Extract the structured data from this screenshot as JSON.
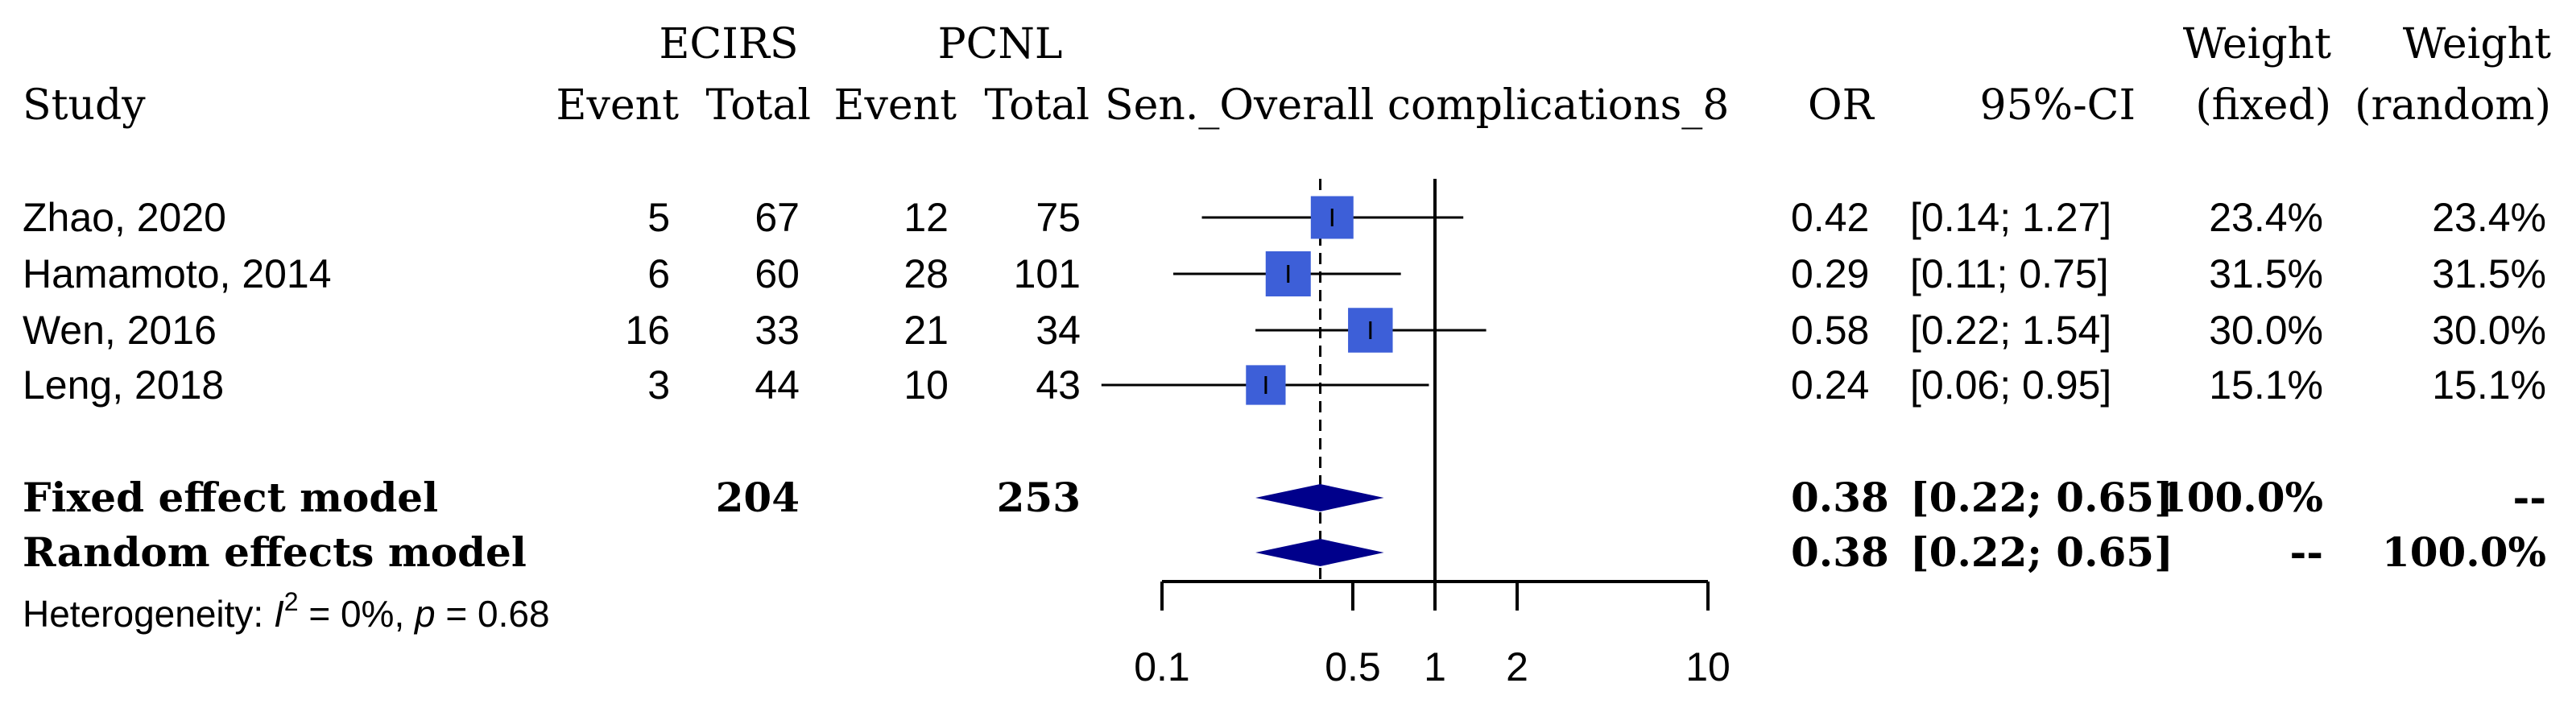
{
  "headers": {
    "group1": "ECIRS",
    "group2": "PCNL",
    "study": "Study",
    "event1": "Event",
    "total1": "Total",
    "event2": "Event",
    "total2": "Total",
    "plot_title": "Sen._Overall complications_8",
    "or": "OR",
    "ci": "95%-CI",
    "weight_fixed_1": "Weight",
    "weight_fixed_2": "(fixed)",
    "weight_random_1": "Weight",
    "weight_random_2": "(random)"
  },
  "studies": [
    {
      "name": "Zhao, 2020",
      "event1": "5",
      "total1": "67",
      "event2": "12",
      "total2": "75",
      "or_text": "0.42",
      "ci_text": "[0.14; 1.27]",
      "wf": "23.4%",
      "wr": "23.4%"
    },
    {
      "name": "Hamamoto, 2014",
      "event1": "6",
      "total1": "60",
      "event2": "28",
      "total2": "101",
      "or_text": "0.29",
      "ci_text": "[0.11; 0.75]",
      "wf": "31.5%",
      "wr": "31.5%"
    },
    {
      "name": "Wen, 2016",
      "event1": "16",
      "total1": "33",
      "event2": "21",
      "total2": "34",
      "or_text": "0.58",
      "ci_text": "[0.22; 1.54]",
      "wf": "30.0%",
      "wr": "30.0%"
    },
    {
      "name": "Leng, 2018",
      "event1": "3",
      "total1": "44",
      "event2": "10",
      "total2": "43",
      "or_text": "0.24",
      "ci_text": "[0.06; 0.95]",
      "wf": "15.1%",
      "wr": "15.1%"
    }
  ],
  "models": [
    {
      "name": "Fixed effect model",
      "total1": "204",
      "total2": "253",
      "or_text": "0.38",
      "ci_text": "[0.22; 0.65]",
      "wf": "100.0%",
      "wr": "--"
    },
    {
      "name": "Random effects model",
      "total1": "",
      "total2": "",
      "or_text": "0.38",
      "ci_text": "[0.22; 0.65]",
      "wf": "--",
      "wr": "100.0%"
    }
  ],
  "heterogeneity": {
    "prefix": "Heterogeneity: ",
    "i2_symbol": "I",
    "i2_sup": "2",
    "i2_value": " = 0%, ",
    "p_symbol": "p",
    "p_value": " = 0.68"
  },
  "colors": {
    "square": "#3d5fd8",
    "diamond": "#00008b",
    "line": "#000000"
  },
  "chart_data": {
    "type": "forest",
    "scale": "log",
    "xlim": [
      0.1,
      10
    ],
    "ticks": [
      0.1,
      0.5,
      1,
      2,
      10
    ],
    "tick_labels": [
      "0.1",
      "0.5",
      "1",
      "2",
      "10"
    ],
    "studies": [
      {
        "name": "Zhao, 2020",
        "or": 0.42,
        "lower": 0.14,
        "upper": 1.27,
        "weight": 23.4
      },
      {
        "name": "Hamamoto, 2014",
        "or": 0.29,
        "lower": 0.11,
        "upper": 0.75,
        "weight": 31.5
      },
      {
        "name": "Wen, 2016",
        "or": 0.58,
        "lower": 0.22,
        "upper": 1.54,
        "weight": 30.0
      },
      {
        "name": "Leng, 2018",
        "or": 0.24,
        "lower": 0.06,
        "upper": 0.95,
        "weight": 15.1
      }
    ],
    "fixed": {
      "or": 0.38,
      "lower": 0.22,
      "upper": 0.65
    },
    "random": {
      "or": 0.38,
      "lower": 0.22,
      "upper": 0.65
    }
  }
}
